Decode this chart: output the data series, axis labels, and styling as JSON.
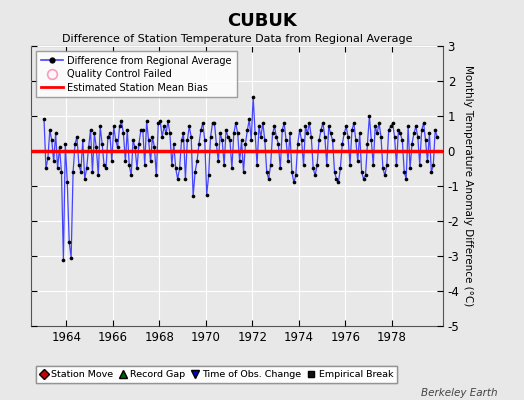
{
  "title": "CUBUK",
  "subtitle": "Difference of Station Temperature Data from Regional Average",
  "ylabel": "Monthly Temperature Anomaly Difference (°C)",
  "background_color": "#e8e8e8",
  "plot_bg_color": "#e8e8e8",
  "bias_value": 0.0,
  "ylim": [
    -5,
    3
  ],
  "xlim": [
    1962.5,
    1980.2
  ],
  "xticks": [
    1964,
    1966,
    1968,
    1970,
    1972,
    1974,
    1976,
    1978
  ],
  "yticks": [
    -5,
    -4,
    -3,
    -2,
    -1,
    0,
    1,
    2,
    3
  ],
  "line_color": "#4444ff",
  "dot_color": "#000000",
  "bias_color": "#ff0000",
  "watermark": "Berkeley Earth",
  "times": [
    1963.042,
    1963.125,
    1963.208,
    1963.292,
    1963.375,
    1963.458,
    1963.542,
    1963.625,
    1963.708,
    1963.792,
    1963.875,
    1963.958,
    1964.042,
    1964.125,
    1964.208,
    1964.292,
    1964.375,
    1964.458,
    1964.542,
    1964.625,
    1964.708,
    1964.792,
    1964.875,
    1964.958,
    1965.042,
    1965.125,
    1965.208,
    1965.292,
    1965.375,
    1965.458,
    1965.542,
    1965.625,
    1965.708,
    1965.792,
    1965.875,
    1965.958,
    1966.042,
    1966.125,
    1966.208,
    1966.292,
    1966.375,
    1966.458,
    1966.542,
    1966.625,
    1966.708,
    1966.792,
    1966.875,
    1966.958,
    1967.042,
    1967.125,
    1967.208,
    1967.292,
    1967.375,
    1967.458,
    1967.542,
    1967.625,
    1967.708,
    1967.792,
    1967.875,
    1967.958,
    1968.042,
    1968.125,
    1968.208,
    1968.292,
    1968.375,
    1968.458,
    1968.542,
    1968.625,
    1968.708,
    1968.792,
    1968.875,
    1968.958,
    1969.042,
    1969.125,
    1969.208,
    1969.292,
    1969.375,
    1969.458,
    1969.542,
    1969.625,
    1969.708,
    1969.792,
    1969.875,
    1969.958,
    1970.042,
    1970.125,
    1970.208,
    1970.292,
    1970.375,
    1970.458,
    1970.542,
    1970.625,
    1970.708,
    1970.792,
    1970.875,
    1970.958,
    1971.042,
    1971.125,
    1971.208,
    1971.292,
    1971.375,
    1971.458,
    1971.542,
    1971.625,
    1971.708,
    1971.792,
    1971.875,
    1971.958,
    1972.042,
    1972.125,
    1972.208,
    1972.292,
    1972.375,
    1972.458,
    1972.542,
    1972.625,
    1972.708,
    1972.792,
    1972.875,
    1972.958,
    1973.042,
    1973.125,
    1973.208,
    1973.292,
    1973.375,
    1973.458,
    1973.542,
    1973.625,
    1973.708,
    1973.792,
    1973.875,
    1973.958,
    1974.042,
    1974.125,
    1974.208,
    1974.292,
    1974.375,
    1974.458,
    1974.542,
    1974.625,
    1974.708,
    1974.792,
    1974.875,
    1974.958,
    1975.042,
    1975.125,
    1975.208,
    1975.292,
    1975.375,
    1975.458,
    1975.542,
    1975.625,
    1975.708,
    1975.792,
    1975.875,
    1975.958,
    1976.042,
    1976.125,
    1976.208,
    1976.292,
    1976.375,
    1976.458,
    1976.542,
    1976.625,
    1976.708,
    1976.792,
    1976.875,
    1976.958,
    1977.042,
    1977.125,
    1977.208,
    1977.292,
    1977.375,
    1977.458,
    1977.542,
    1977.625,
    1977.708,
    1977.792,
    1977.875,
    1977.958,
    1978.042,
    1978.125,
    1978.208,
    1978.292,
    1978.375,
    1978.458,
    1978.542,
    1978.625,
    1978.708,
    1978.792,
    1978.875,
    1978.958,
    1979.042,
    1979.125,
    1979.208,
    1979.292,
    1979.375,
    1979.458,
    1979.542,
    1979.625,
    1979.708,
    1979.792,
    1979.875,
    1979.958
  ],
  "values": [
    0.9,
    -0.5,
    -0.2,
    0.6,
    0.3,
    -0.3,
    0.5,
    -0.5,
    0.1,
    -0.6,
    -3.1,
    0.2,
    -0.9,
    -2.6,
    -3.05,
    -0.6,
    0.2,
    0.4,
    -0.4,
    -0.6,
    0.3,
    -0.8,
    -0.5,
    0.1,
    0.6,
    -0.6,
    0.5,
    0.1,
    -0.7,
    0.7,
    0.2,
    -0.4,
    -0.5,
    0.4,
    0.5,
    -0.3,
    0.7,
    0.3,
    0.1,
    0.7,
    0.85,
    0.5,
    -0.3,
    0.6,
    -0.4,
    -0.7,
    0.3,
    0.1,
    -0.5,
    0.2,
    0.6,
    0.6,
    -0.4,
    0.85,
    0.3,
    -0.3,
    0.4,
    0.1,
    -0.7,
    0.8,
    0.85,
    0.4,
    0.7,
    0.5,
    0.85,
    0.5,
    -0.4,
    0.2,
    -0.5,
    -0.8,
    -0.5,
    0.3,
    0.5,
    -0.8,
    0.3,
    0.7,
    0.4,
    -1.3,
    -0.6,
    -0.3,
    0.2,
    0.6,
    0.8,
    0.3,
    -1.25,
    -0.7,
    0.4,
    0.8,
    0.8,
    0.2,
    -0.3,
    0.5,
    0.3,
    -0.4,
    0.6,
    0.4,
    0.3,
    -0.5,
    0.5,
    0.8,
    0.5,
    -0.3,
    0.3,
    -0.6,
    0.2,
    0.6,
    0.9,
    0.3,
    1.55,
    0.5,
    -0.4,
    0.7,
    0.4,
    0.8,
    0.3,
    -0.6,
    -0.8,
    -0.4,
    0.5,
    0.7,
    0.4,
    0.2,
    -0.5,
    0.6,
    0.8,
    0.3,
    -0.3,
    0.5,
    -0.6,
    -0.9,
    -0.7,
    0.2,
    0.6,
    0.3,
    -0.4,
    0.7,
    0.5,
    0.8,
    0.4,
    -0.5,
    -0.7,
    -0.4,
    0.3,
    0.6,
    0.8,
    0.4,
    -0.4,
    0.7,
    0.5,
    0.3,
    -0.6,
    -0.8,
    -0.9,
    -0.5,
    0.2,
    0.5,
    0.7,
    0.4,
    -0.4,
    0.6,
    0.8,
    0.3,
    -0.3,
    0.5,
    -0.6,
    -0.8,
    -0.7,
    0.2,
    1.0,
    0.3,
    -0.4,
    0.7,
    0.5,
    0.8,
    0.4,
    -0.5,
    -0.7,
    -0.4,
    0.6,
    0.7,
    0.8,
    0.4,
    -0.4,
    0.6,
    0.5,
    0.3,
    -0.6,
    -0.8,
    0.7,
    -0.5,
    0.2,
    0.5,
    0.7,
    0.4,
    -0.4,
    0.6,
    0.8,
    0.3,
    -0.3,
    0.5,
    -0.6,
    -0.4,
    0.6,
    0.4
  ]
}
